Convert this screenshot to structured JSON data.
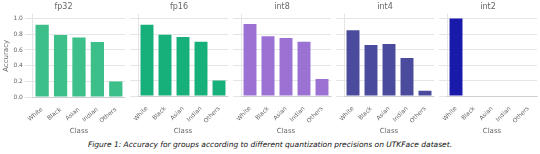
{
  "caption": "Figure 1: Accuracy for groups according to different quantization precisions on UTKFace dataset.",
  "chart_data": [
    {
      "type": "bar",
      "title": "fp32",
      "categories": [
        "White",
        "Black",
        "Asian",
        "Indian",
        "Others"
      ],
      "values": [
        0.92,
        0.79,
        0.76,
        0.7,
        0.2
      ],
      "color": "#3dbf8a",
      "xlabel": "Class",
      "ylabel": "Accuracy",
      "ylim": [
        0,
        1.05
      ],
      "yticks": [
        {
          "value": 0,
          "label": "0.0"
        },
        0.2,
        0.4,
        0.6,
        0.8,
        {
          "value": 1,
          "label": "1.0"
        }
      ],
      "grid": true
    },
    {
      "type": "bar",
      "title": "fp16",
      "categories": [
        "White",
        "Black",
        "Asian",
        "Indian",
        "Others"
      ],
      "values": [
        0.92,
        0.79,
        0.76,
        0.7,
        0.2
      ],
      "color": "#17b07a",
      "xlabel": "Class",
      "ylim": [
        0,
        1.05
      ],
      "yticks": [
        0,
        0.2,
        0.4,
        0.6,
        0.8,
        1
      ],
      "grid": true,
      "tick_labels": "x"
    },
    {
      "type": "bar",
      "title": "int8",
      "categories": [
        "White",
        "Black",
        "Asian",
        "Indian",
        "Others"
      ],
      "values": [
        0.93,
        0.77,
        0.75,
        0.7,
        0.22
      ],
      "color": "#9b72d4",
      "xlabel": "Class",
      "ylim": [
        0,
        1.05
      ],
      "yticks": [
        0,
        0.2,
        0.4,
        0.6,
        0.8,
        1
      ],
      "grid": true,
      "tick_labels": "x"
    },
    {
      "type": "bar",
      "title": "int4",
      "categories": [
        "White",
        "Black",
        "Asian",
        "Indian",
        "Others"
      ],
      "values": [
        0.85,
        0.66,
        0.67,
        0.49,
        0.07
      ],
      "color": "#4b4b9e",
      "xlabel": "Class",
      "ylim": [
        0,
        1.05
      ],
      "yticks": [
        0,
        0.2,
        0.4,
        0.6,
        0.8,
        1
      ],
      "grid": true,
      "tick_labels": "x"
    },
    {
      "type": "bar",
      "title": "int2",
      "categories": [
        "White",
        "Black",
        "Asian",
        "Indian",
        "Others"
      ],
      "values": [
        1.0,
        0.0,
        0.0,
        0.0,
        0.0
      ],
      "color": "#1a1aaa",
      "xlabel": "Class",
      "ylim": [
        0,
        1.05
      ],
      "yticks": [
        0,
        0.2,
        0.4,
        0.6,
        0.8,
        1
      ],
      "grid": true,
      "tick_labels": "x"
    }
  ]
}
